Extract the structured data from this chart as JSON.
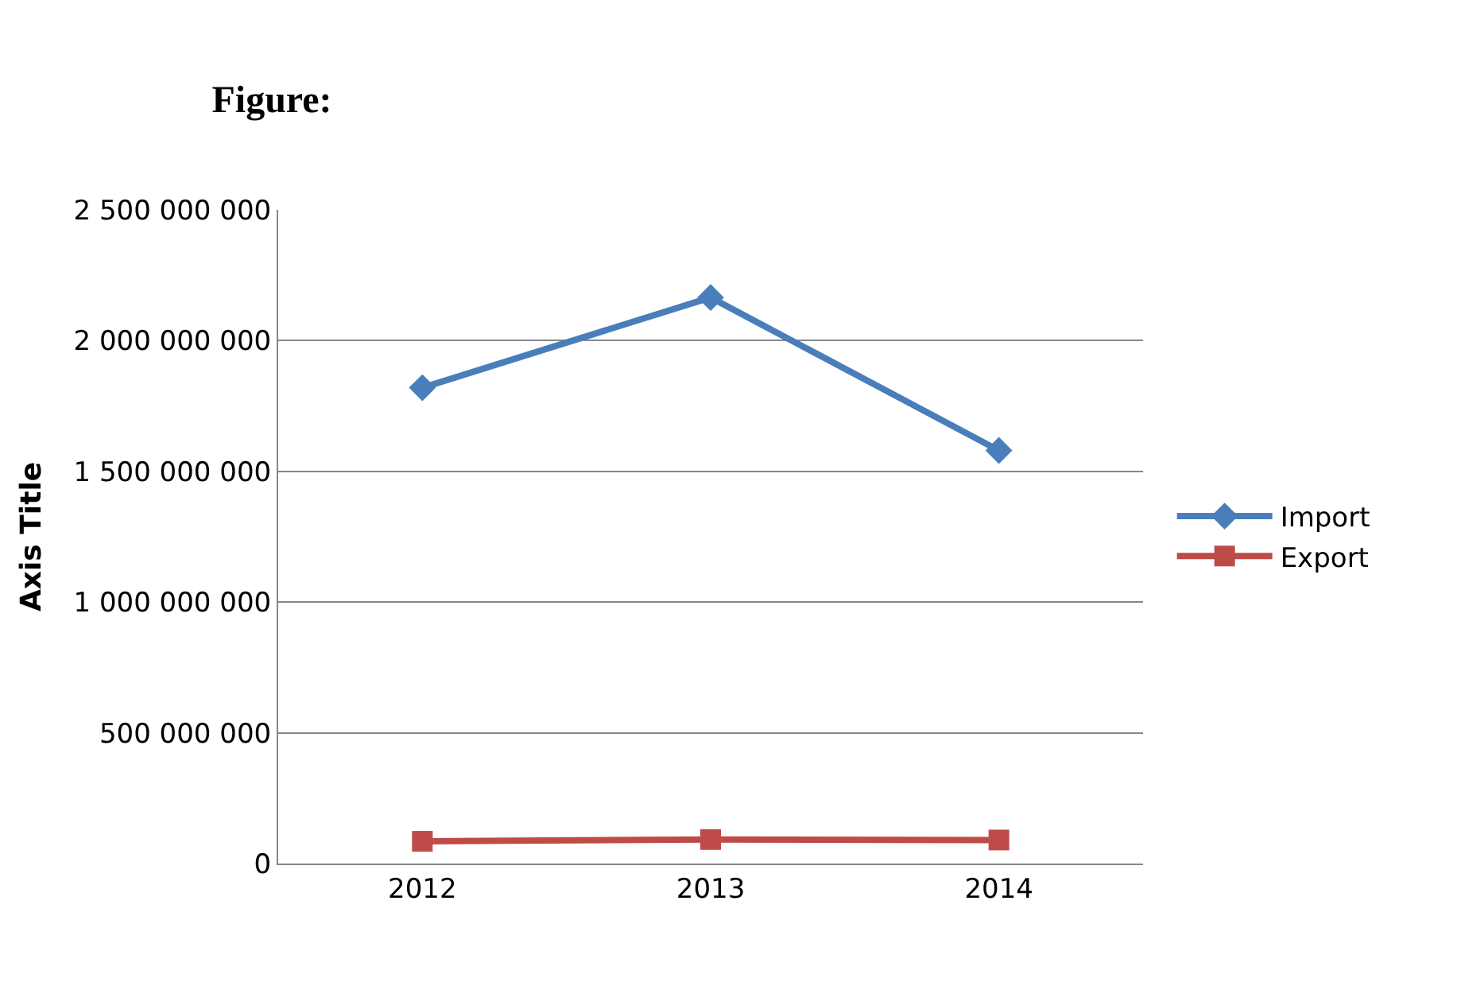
{
  "chart_data": {
    "type": "line",
    "title": "Figure:",
    "ylabel": "Axis Title",
    "categories": [
      "2012",
      "2013",
      "2014"
    ],
    "series": [
      {
        "name": "Import",
        "color": "#4a7ebb",
        "values": [
          1820000000,
          2165000000,
          1580000000
        ],
        "marker": "diamond"
      },
      {
        "name": "Export",
        "color": "#be4b48",
        "values": [
          85000000,
          92000000,
          90000000
        ],
        "marker": "square"
      }
    ],
    "ylim": [
      0,
      2500000000
    ],
    "yticks": [
      {
        "value": 0,
        "label": "0"
      },
      {
        "value": 500000000,
        "label": "500 000 000"
      },
      {
        "value": 1000000000,
        "label": "1 000 000 000"
      },
      {
        "value": 1500000000,
        "label": "1 500 000 000"
      },
      {
        "value": 2000000000,
        "label": "2 000 000 000"
      },
      {
        "value": 2500000000,
        "label": "2 500 000 000"
      }
    ],
    "grid": "y",
    "legend": "right",
    "line_style": "solid"
  }
}
